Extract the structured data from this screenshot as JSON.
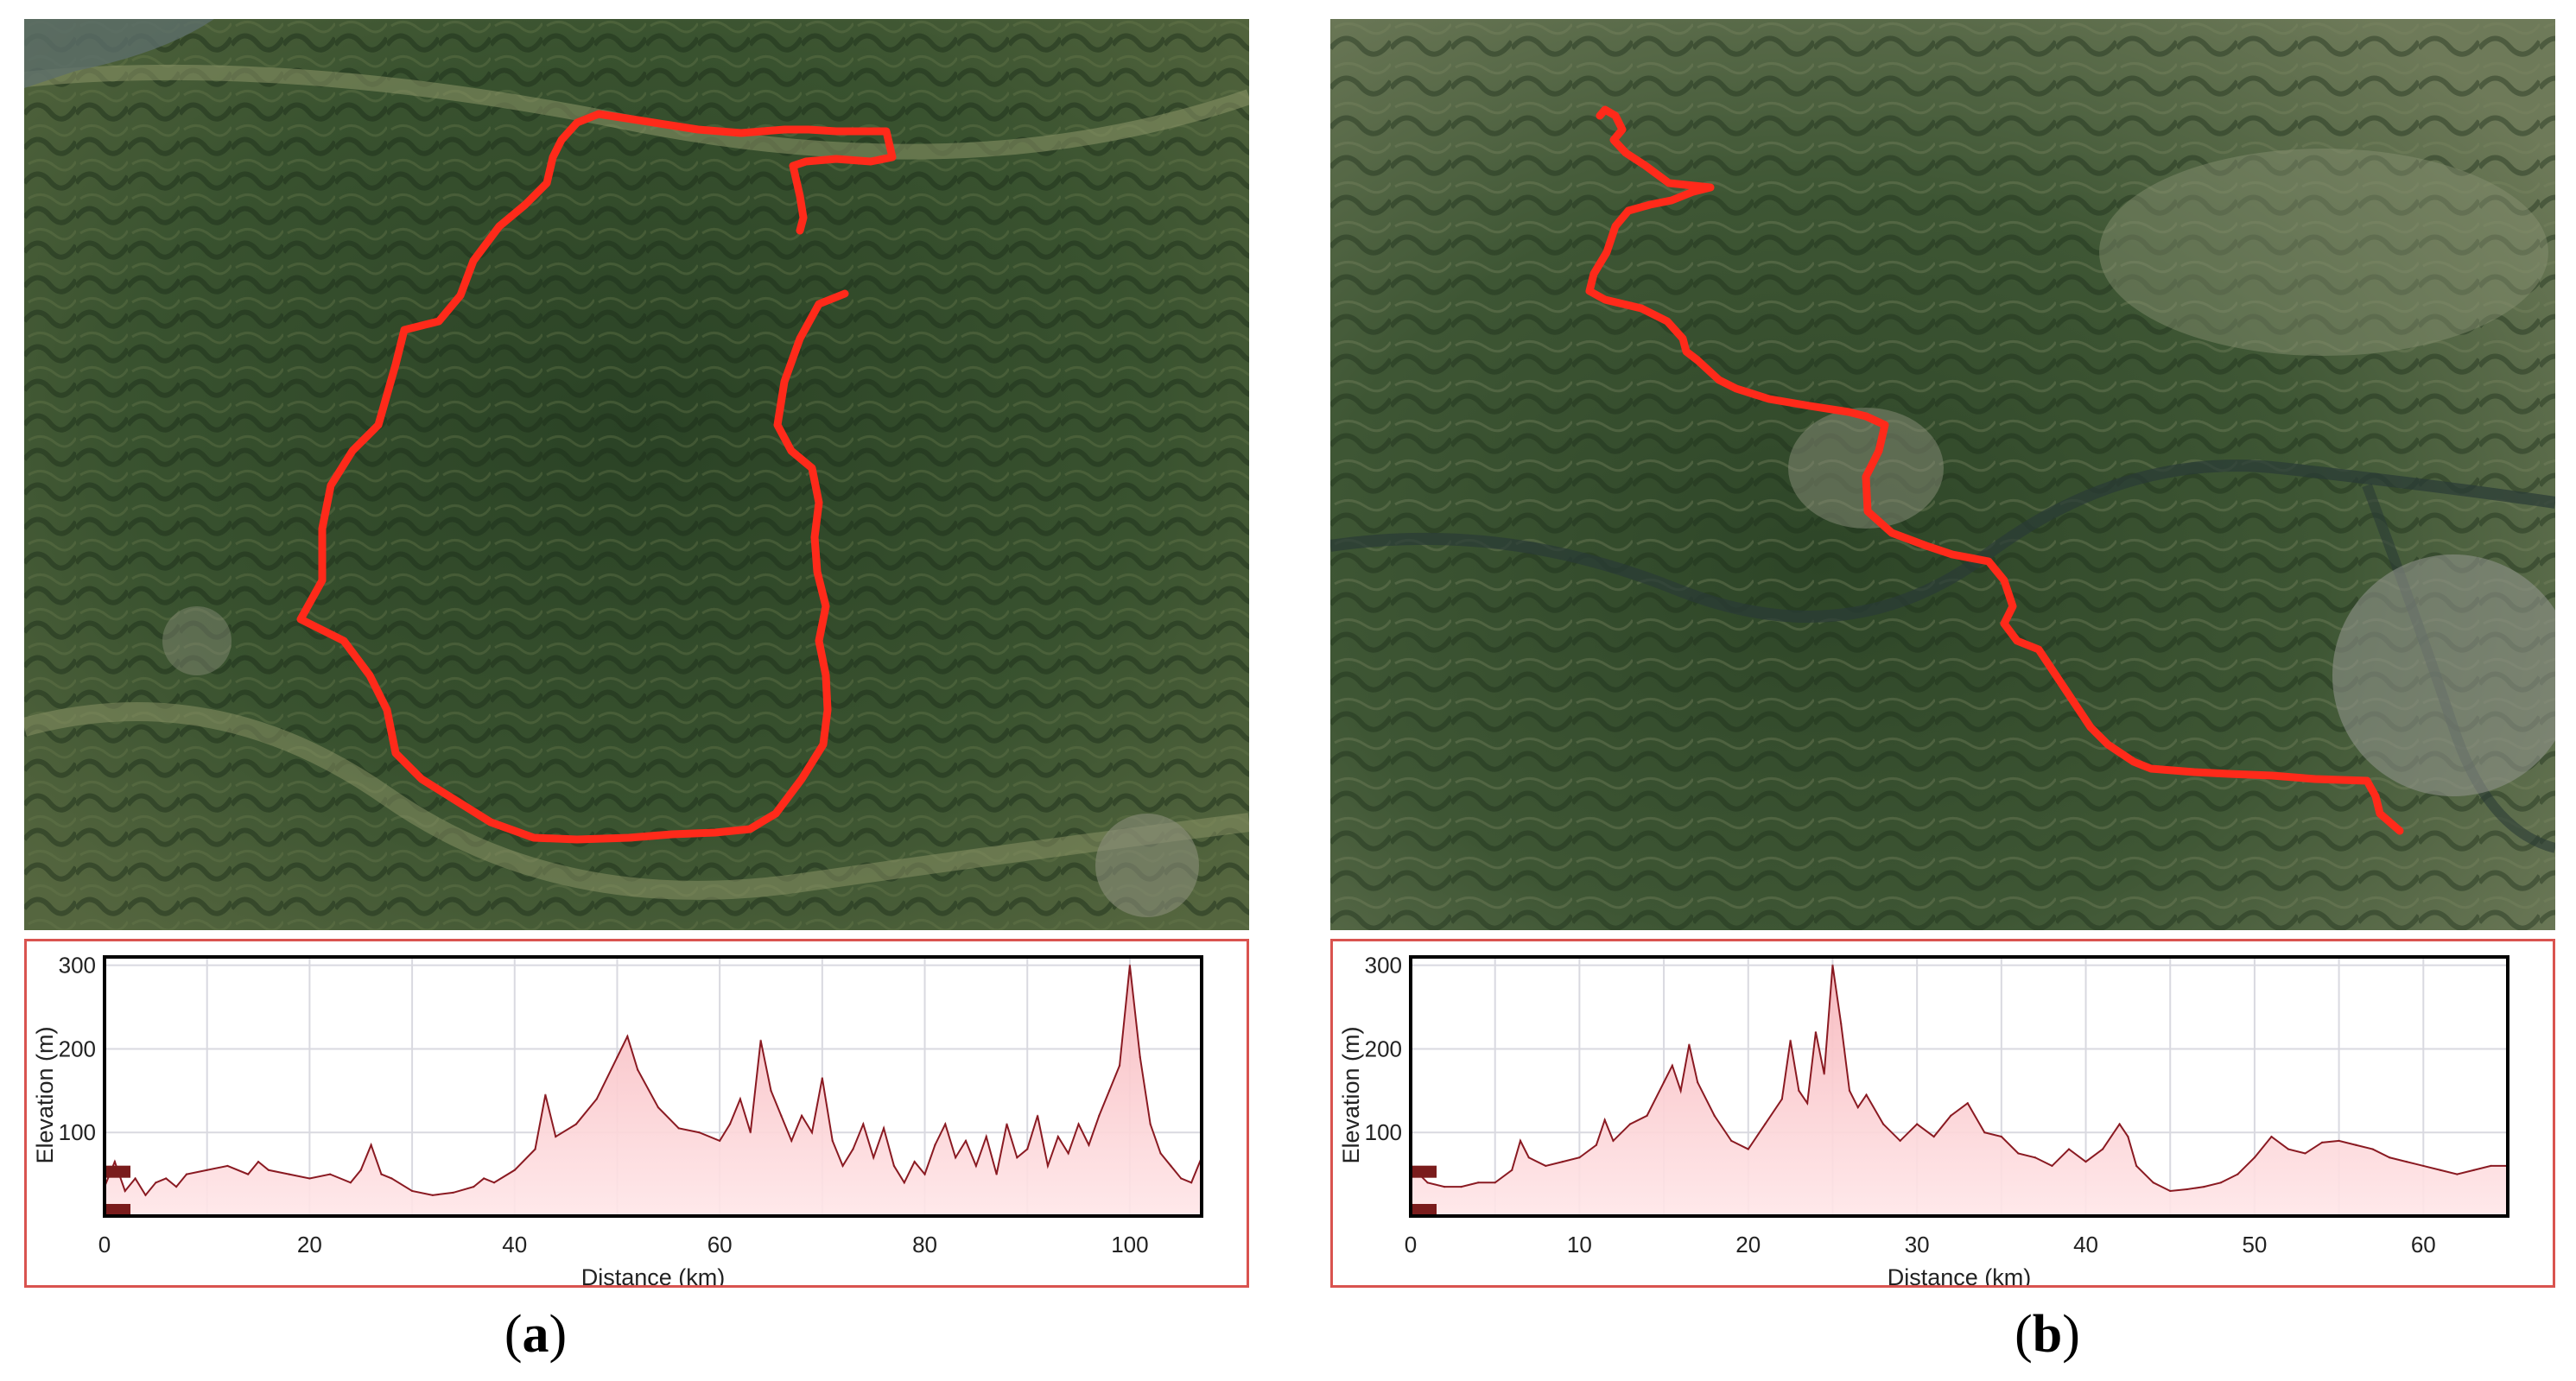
{
  "panels": [
    {
      "id": "a",
      "caption_open": "(",
      "caption_letter": "a",
      "caption_close": ")",
      "colors": {
        "route": "#ff2a1a",
        "profile_fill": "#f7b8bd",
        "profile_line": "#8a1a22",
        "frame": "#d9534f"
      },
      "chart_data": {
        "type": "area",
        "title": "",
        "xlabel": "Distance (km)",
        "ylabel": "Elevation (m)",
        "xlim": [
          0,
          107
        ],
        "ylim": [
          0,
          310
        ],
        "xticks": [
          0,
          20,
          40,
          60,
          80,
          100
        ],
        "yticks": [
          100,
          200,
          300
        ],
        "grid": true,
        "x": [
          0,
          1,
          2,
          3,
          4,
          5,
          6,
          7,
          8,
          10,
          12,
          14,
          15,
          16,
          18,
          20,
          22,
          24,
          25,
          26,
          27,
          28,
          30,
          32,
          34,
          36,
          37,
          38,
          40,
          42,
          43,
          44,
          46,
          48,
          50,
          51,
          52,
          54,
          56,
          58,
          60,
          61,
          62,
          63,
          64,
          65,
          66,
          67,
          68,
          69,
          70,
          71,
          72,
          73,
          74,
          75,
          76,
          77,
          78,
          79,
          80,
          81,
          82,
          83,
          84,
          85,
          86,
          87,
          88,
          89,
          90,
          91,
          92,
          93,
          94,
          95,
          96,
          97,
          98,
          99,
          100,
          101,
          102,
          103,
          104,
          105,
          106,
          107
        ],
        "y": [
          35,
          65,
          30,
          45,
          25,
          40,
          45,
          35,
          50,
          55,
          60,
          50,
          65,
          55,
          50,
          45,
          50,
          40,
          55,
          85,
          50,
          45,
          30,
          25,
          28,
          35,
          45,
          40,
          55,
          80,
          145,
          95,
          110,
          140,
          190,
          215,
          175,
          130,
          105,
          100,
          90,
          110,
          140,
          100,
          210,
          150,
          120,
          90,
          120,
          100,
          165,
          90,
          60,
          80,
          110,
          70,
          105,
          60,
          40,
          65,
          50,
          85,
          110,
          70,
          90,
          60,
          95,
          50,
          110,
          70,
          80,
          120,
          60,
          95,
          75,
          110,
          85,
          120,
          150,
          180,
          300,
          190,
          110,
          75,
          60,
          45,
          40,
          70
        ]
      },
      "markers": [
        "",
        ""
      ]
    },
    {
      "id": "b",
      "caption_open": "(",
      "caption_letter": "b",
      "caption_close": ")",
      "colors": {
        "route": "#ff2a1a",
        "profile_fill": "#f7b8bd",
        "profile_line": "#8a1a22",
        "frame": "#d9534f"
      },
      "chart_data": {
        "type": "area",
        "title": "",
        "xlabel": "Distance (km)",
        "ylabel": "Elevation (m)",
        "xlim": [
          0,
          65
        ],
        "ylim": [
          0,
          310
        ],
        "xticks": [
          0,
          10,
          20,
          30,
          40,
          50,
          60
        ],
        "yticks": [
          100,
          200,
          300
        ],
        "grid": true,
        "x": [
          0,
          1,
          2,
          3,
          4,
          5,
          6,
          6.5,
          7,
          8,
          9,
          10,
          11,
          11.5,
          12,
          13,
          14,
          15,
          15.5,
          16,
          16.5,
          17,
          18,
          19,
          20,
          21,
          22,
          22.5,
          23,
          23.5,
          24,
          24.5,
          25,
          25.5,
          26,
          26.5,
          27,
          28,
          29,
          30,
          31,
          32,
          33,
          34,
          35,
          36,
          37,
          38,
          39,
          40,
          41,
          42,
          42.5,
          43,
          44,
          45,
          46,
          47,
          48,
          49,
          50,
          51,
          52,
          53,
          54,
          55,
          56,
          57,
          58,
          59,
          60,
          61,
          62,
          63,
          64,
          65
        ],
        "y": [
          60,
          40,
          35,
          35,
          40,
          40,
          55,
          90,
          70,
          60,
          65,
          70,
          85,
          115,
          90,
          110,
          120,
          160,
          180,
          150,
          205,
          160,
          120,
          90,
          80,
          110,
          140,
          210,
          150,
          135,
          220,
          170,
          300,
          230,
          150,
          130,
          145,
          110,
          90,
          110,
          95,
          120,
          135,
          100,
          95,
          75,
          70,
          60,
          80,
          65,
          80,
          110,
          95,
          60,
          40,
          30,
          32,
          35,
          40,
          50,
          70,
          95,
          80,
          75,
          88,
          90,
          85,
          80,
          70,
          65,
          60,
          55,
          50,
          55,
          60,
          60
        ]
      },
      "markers": [
        "",
        ""
      ]
    }
  ]
}
